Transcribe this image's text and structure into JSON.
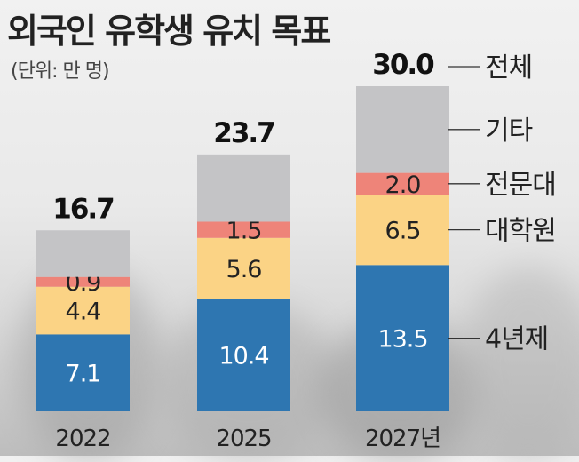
{
  "title": "외국인 유학생 유치 목표",
  "unit": "(단위: 만 명)",
  "colors": {
    "기타": "#c4c4c6",
    "전문대": "#ee8479",
    "대학원": "#fbd385",
    "4년제": "#2e76b1"
  },
  "chart_data": {
    "type": "bar",
    "stacked": true,
    "categories": [
      "2022",
      "2025",
      "2027년"
    ],
    "totals": [
      "16.7",
      "23.7",
      "30.0"
    ],
    "total_series_label": "전체",
    "series": [
      {
        "name": "4년제",
        "values": [
          7.1,
          10.4,
          13.5
        ],
        "labels": [
          "7.1",
          "10.4",
          "13.5"
        ],
        "color": "#2e76b1"
      },
      {
        "name": "대학원",
        "values": [
          4.4,
          5.6,
          6.5
        ],
        "labels": [
          "4.4",
          "5.6",
          "6.5"
        ],
        "color": "#fbd385"
      },
      {
        "name": "전문대",
        "values": [
          0.9,
          1.5,
          2.0
        ],
        "labels": [
          "0.9",
          "1.5",
          "2.0"
        ],
        "color": "#ee8479"
      },
      {
        "name": "기타",
        "values": [
          4.3,
          6.2,
          8.0
        ],
        "labels": [
          "",
          "",
          ""
        ],
        "color": "#c4c4c6"
      }
    ],
    "legend_placement": "right",
    "grid": false
  }
}
